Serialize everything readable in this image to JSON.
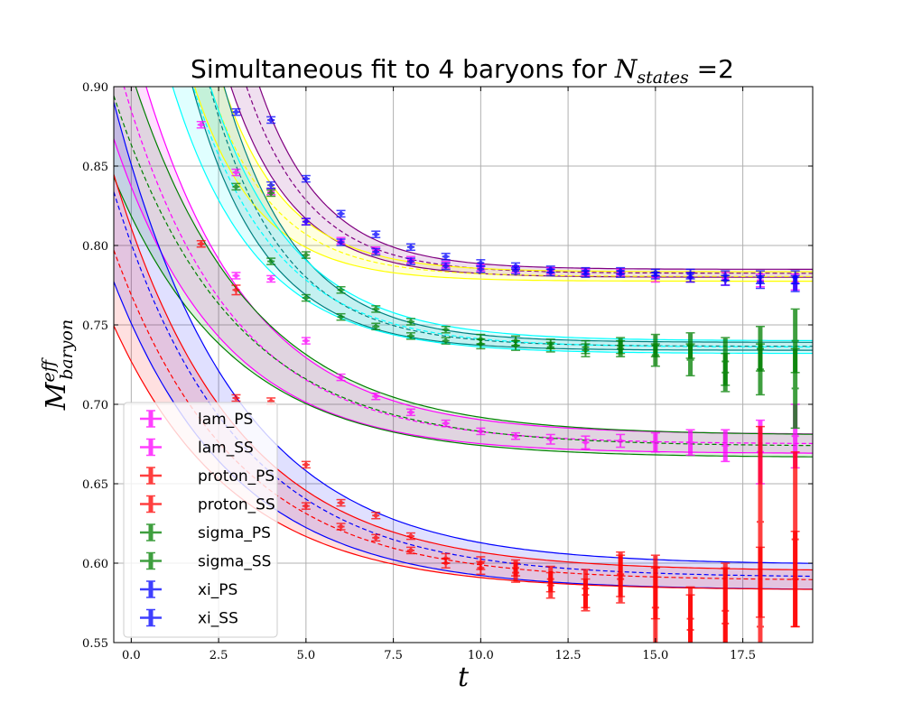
{
  "chart_data": {
    "type": "scatter",
    "title": {
      "prefix": "Simultaneous fit to 4 baryons for ",
      "math_base": "N",
      "math_sub": "states",
      "suffix": " =2"
    },
    "xlabel": "t",
    "ylabel": {
      "base": "M",
      "sup": "eff",
      "sub": "baryon"
    },
    "xlim": [
      -0.5,
      19.5
    ],
    "ylim": [
      0.55,
      0.9
    ],
    "x_ticks": [
      0.0,
      2.5,
      5.0,
      7.5,
      10.0,
      12.5,
      15.0,
      17.5
    ],
    "x_tick_labels": [
      "0.0",
      "2.5",
      "5.0",
      "7.5",
      "10.0",
      "12.5",
      "15.0",
      "17.5"
    ],
    "y_ticks": [
      0.55,
      0.6,
      0.65,
      0.7,
      0.75,
      0.8,
      0.85,
      0.9
    ],
    "y_tick_labels": [
      "0.55",
      "0.60",
      "0.65",
      "0.70",
      "0.75",
      "0.80",
      "0.85",
      "0.90"
    ],
    "grid": true,
    "legend_position": "lower-left",
    "series": [
      {
        "name": "lam_PS",
        "color": "#ff00ff",
        "x": [
          2,
          3,
          4,
          5,
          6,
          7,
          8,
          9,
          10,
          11,
          12,
          13,
          14,
          15,
          16,
          17,
          18,
          19
        ],
        "y": [
          0.876,
          0.846,
          0.834,
          0.815,
          0.803,
          0.797,
          0.791,
          0.788,
          0.786,
          0.785,
          0.784,
          0.783,
          0.783,
          0.78,
          0.78,
          0.779,
          0.778,
          0.777
        ],
        "err": [
          0.002,
          0.002,
          0.002,
          0.002,
          0.002,
          0.002,
          0.002,
          0.002,
          0.002,
          0.002,
          0.002,
          0.002,
          0.002,
          0.003,
          0.003,
          0.004,
          0.004,
          0.005
        ]
      },
      {
        "name": "lam_SS",
        "color": "#ff00ff",
        "x": [
          3,
          4,
          5,
          6,
          7,
          8,
          9,
          10,
          11,
          12,
          13,
          14,
          15,
          16,
          17,
          18,
          19
        ],
        "y": [
          0.781,
          0.779,
          0.74,
          0.717,
          0.705,
          0.695,
          0.688,
          0.683,
          0.68,
          0.678,
          0.676,
          0.677,
          0.676,
          0.676,
          0.674,
          0.67,
          0.68
        ],
        "err": [
          0.002,
          0.002,
          0.002,
          0.002,
          0.002,
          0.002,
          0.002,
          0.002,
          0.002,
          0.003,
          0.004,
          0.004,
          0.006,
          0.008,
          0.01,
          0.02,
          0.02
        ]
      },
      {
        "name": "proton_PS",
        "color": "#ff0000",
        "x": [
          2,
          3,
          4,
          5,
          6,
          7,
          8,
          9,
          10,
          11,
          12,
          13,
          14,
          15,
          16,
          17,
          18,
          19
        ],
        "y": [
          0.801,
          0.772,
          0.702,
          0.662,
          0.638,
          0.63,
          0.617,
          0.603,
          0.6,
          0.597,
          0.59,
          0.58,
          0.59,
          0.585,
          0.565,
          0.57,
          0.626,
          0.615
        ],
        "err": [
          0.002,
          0.003,
          0.002,
          0.002,
          0.002,
          0.002,
          0.002,
          0.003,
          0.004,
          0.005,
          0.008,
          0.01,
          0.015,
          0.02,
          0.02,
          0.03,
          0.06,
          0.055
        ]
      },
      {
        "name": "proton_SS",
        "color": "#ff0000",
        "x": [
          3,
          5,
          6,
          7,
          8,
          9,
          10,
          11,
          12,
          13,
          14,
          15,
          16,
          17,
          18,
          19
        ],
        "y": [
          0.704,
          0.636,
          0.623,
          0.616,
          0.608,
          0.6,
          0.597,
          0.594,
          0.586,
          0.584,
          0.593,
          0.572,
          0.558,
          0.562,
          0.56,
          0.59
        ],
        "err": [
          0.002,
          0.002,
          0.002,
          0.002,
          0.002,
          0.003,
          0.004,
          0.006,
          0.008,
          0.012,
          0.014,
          0.025,
          0.022,
          0.035,
          0.05,
          0.03
        ]
      },
      {
        "name": "sigma_PS",
        "color": "#008000",
        "x": [
          3,
          4,
          5,
          6,
          7,
          8,
          9,
          10,
          11,
          12,
          13,
          14,
          15,
          16,
          17,
          18,
          19
        ],
        "y": [
          0.837,
          0.833,
          0.794,
          0.772,
          0.76,
          0.752,
          0.747,
          0.741,
          0.74,
          0.738,
          0.736,
          0.737,
          0.737,
          0.737,
          0.727,
          0.735,
          0.74
        ],
        "err": [
          0.002,
          0.002,
          0.002,
          0.002,
          0.002,
          0.002,
          0.002,
          0.003,
          0.003,
          0.003,
          0.004,
          0.005,
          0.007,
          0.008,
          0.015,
          0.014,
          0.02
        ]
      },
      {
        "name": "sigma_SS",
        "color": "#008000",
        "x": [
          4,
          5,
          6,
          7,
          8,
          9,
          10,
          11,
          12,
          13,
          14,
          15,
          16,
          17,
          18,
          19
        ],
        "y": [
          0.79,
          0.767,
          0.755,
          0.749,
          0.743,
          0.74,
          0.738,
          0.737,
          0.736,
          0.734,
          0.735,
          0.731,
          0.728,
          0.72,
          0.722,
          0.71
        ],
        "err": [
          0.002,
          0.002,
          0.002,
          0.002,
          0.002,
          0.002,
          0.003,
          0.003,
          0.003,
          0.004,
          0.005,
          0.007,
          0.01,
          0.012,
          0.016,
          0.025
        ]
      },
      {
        "name": "xi_PS",
        "color": "#0000ff",
        "x": [
          3,
          4,
          5,
          6,
          7,
          8,
          9,
          10,
          11,
          12,
          13,
          14,
          15,
          16,
          17,
          18,
          19
        ],
        "y": [
          0.884,
          0.879,
          0.842,
          0.82,
          0.807,
          0.799,
          0.793,
          0.789,
          0.787,
          0.785,
          0.784,
          0.784,
          0.783,
          0.782,
          0.781,
          0.78,
          0.78
        ],
        "err": [
          0.002,
          0.002,
          0.002,
          0.002,
          0.002,
          0.002,
          0.002,
          0.002,
          0.002,
          0.002,
          0.002,
          0.002,
          0.002,
          0.003,
          0.003,
          0.004,
          0.004
        ]
      },
      {
        "name": "xi_SS",
        "color": "#0000ff",
        "x": [
          4,
          5,
          6,
          7,
          8,
          9,
          10,
          11,
          12,
          13,
          14,
          15,
          16,
          17,
          18,
          19
        ],
        "y": [
          0.838,
          0.815,
          0.802,
          0.796,
          0.79,
          0.787,
          0.785,
          0.784,
          0.783,
          0.782,
          0.782,
          0.781,
          0.78,
          0.778,
          0.777,
          0.776
        ],
        "err": [
          0.002,
          0.002,
          0.002,
          0.002,
          0.002,
          0.002,
          0.002,
          0.002,
          0.002,
          0.002,
          0.002,
          0.002,
          0.003,
          0.003,
          0.004,
          0.005
        ]
      }
    ],
    "fit_curves": [
      {
        "color": "#800080",
        "band": "#800080",
        "A": 0.7825,
        "B": 0.72,
        "k": 0.55,
        "width": 0.0025
      },
      {
        "color": "#ffff00",
        "band": "#ffff00",
        "A": 0.7805,
        "B": 0.415,
        "k": 0.55,
        "width": 0.003
      },
      {
        "color": "#008080",
        "band": "#008080",
        "A": 0.7365,
        "B": 0.48,
        "k": 0.48,
        "width": 0.0025
      },
      {
        "color": "#00ffff",
        "band": "#00ffff",
        "A": 0.736,
        "B": 0.345,
        "k": 0.42,
        "width": 0.004
      },
      {
        "color": "#ff00ff",
        "band": "#ff00ff",
        "A": 0.675,
        "B": 0.21,
        "k": 0.33,
        "width": 0.006
      },
      {
        "color": "#008000",
        "band": "#008000",
        "A": 0.6735,
        "B": 0.19,
        "k": 0.3,
        "width": 0.007
      },
      {
        "color": "#0000ff",
        "band": "#0000ff",
        "A": 0.591,
        "B": 0.21,
        "k": 0.29,
        "width": 0.008
      },
      {
        "color": "#ff0000",
        "band": "#ff0000",
        "A": 0.589,
        "B": 0.18,
        "k": 0.29,
        "width": 0.006
      }
    ]
  }
}
